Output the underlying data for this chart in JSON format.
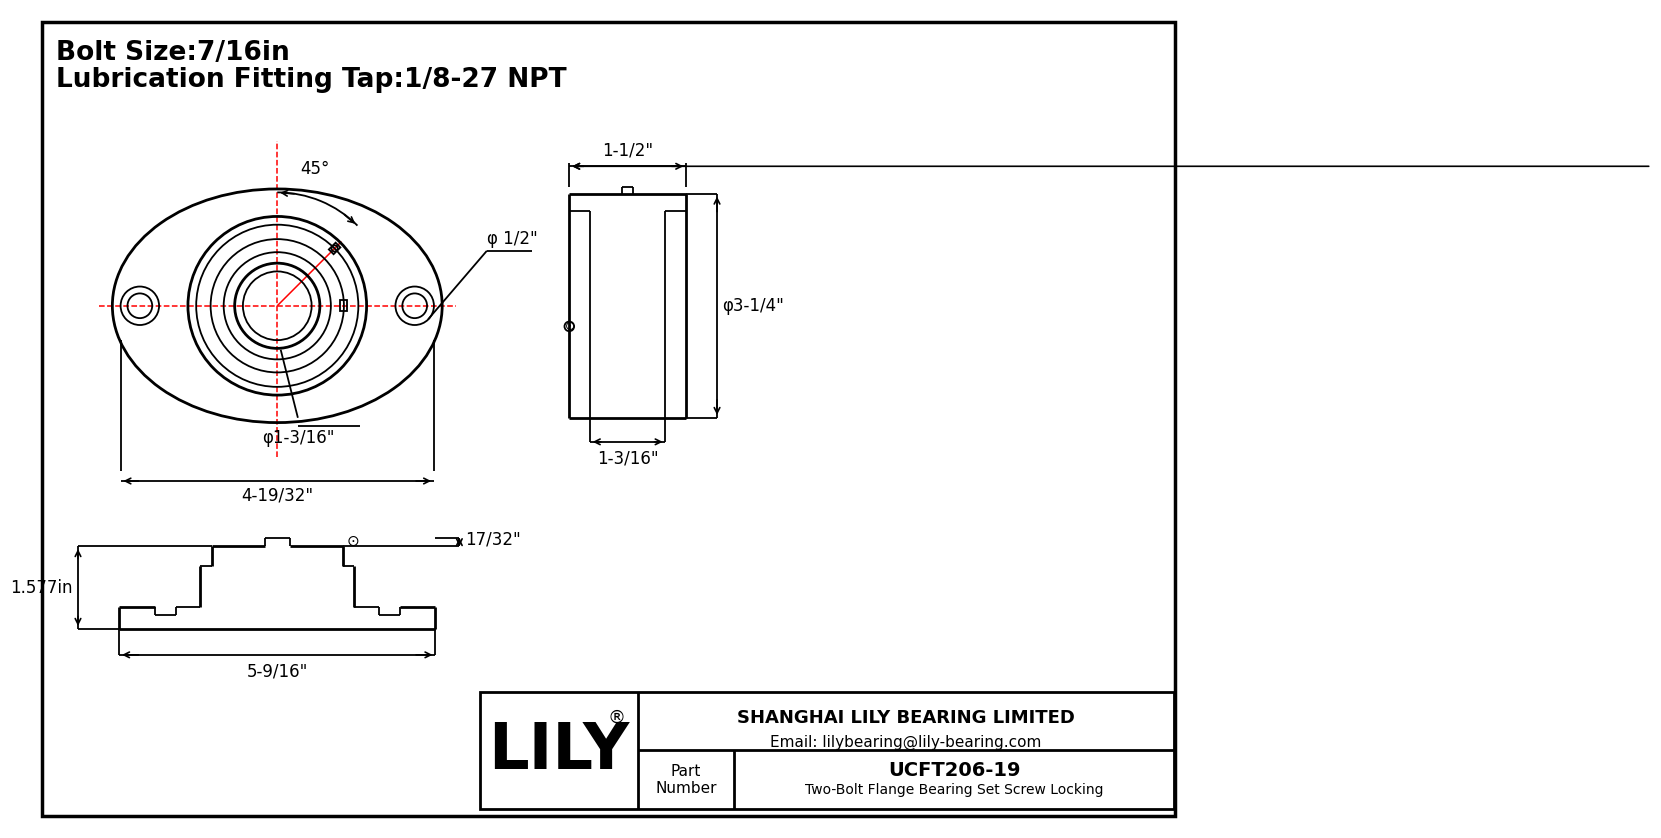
{
  "bg_color": "#ffffff",
  "line_color": "#000000",
  "red_color": "#ff0000",
  "title_line1": "Bolt Size:7/16in",
  "title_line2": "Lubrication Fitting Tap:1/8-27 NPT",
  "dim_phi_half": "φ 1/2\"",
  "dim_45deg": "45°",
  "dim_phi_1_3_16": "φ1-3/16\"",
  "dim_4_19_32": "4-19/32\"",
  "dim_1_half": "1-1/2\"",
  "dim_phi_3_quarter": "φ3-1/4\"",
  "dim_1_3_16_side": "1-3/16\"",
  "dim_1_577": "1.577in",
  "dim_17_32": "17/32\"",
  "dim_5_9_16": "5-9/16\"",
  "company_name": "SHANGHAI LILY BEARING LIMITED",
  "company_email": "Email: lilybearing@lily-bearing.com",
  "brand_reg": "®",
  "part_number": "UCFT206-19",
  "part_desc": "Two-Bolt Flange Bearing Set Screw Locking",
  "title_fontsize": 19,
  "dim_fontsize": 12,
  "label_fontsize": 13
}
